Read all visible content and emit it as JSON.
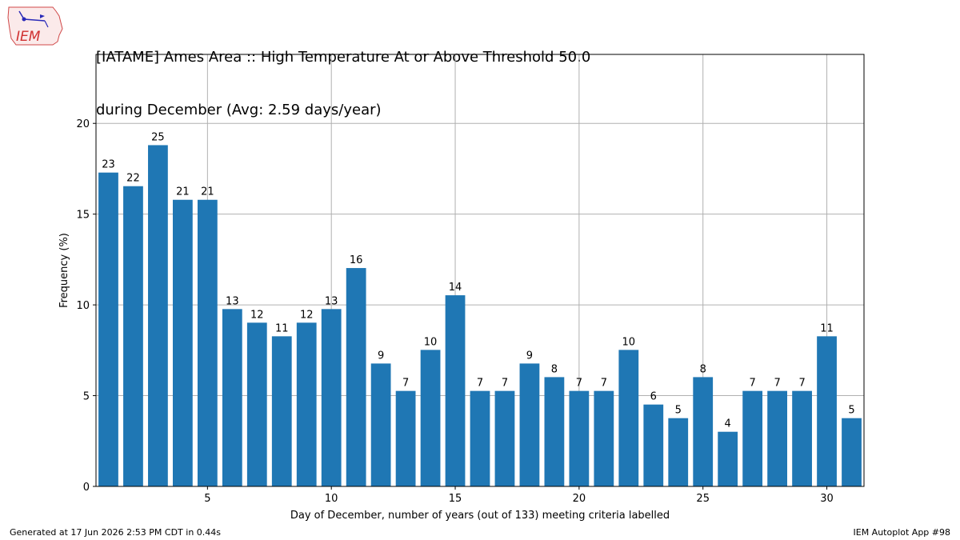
{
  "header": {
    "title_line1": "[IATAME] Ames Area :: High Temperature At or Above Threshold 50.0",
    "title_line2": "during December (Avg: 2.59 days/year)",
    "logo_text": "IEM"
  },
  "footer": {
    "generated": "Generated at 17 Jun 2026 2:53 PM CDT in 0.44s",
    "app": "IEM Autoplot App #98"
  },
  "colors": {
    "bar": "#1f77b4",
    "grid": "#b0b0b0"
  },
  "chart_data": {
    "type": "bar",
    "xlabel": "Day of December, number of years (out of 133) meeting criteria labelled",
    "ylabel": "Frequency (%)",
    "xlim": [
      0.5,
      31.5
    ],
    "ylim": [
      0,
      23.8
    ],
    "xticks": [
      5,
      10,
      15,
      20,
      25,
      30
    ],
    "yticks": [
      0,
      5,
      10,
      15,
      20
    ],
    "grid": true,
    "categories": [
      1,
      2,
      3,
      4,
      5,
      6,
      7,
      8,
      9,
      10,
      11,
      12,
      13,
      14,
      15,
      16,
      17,
      18,
      19,
      20,
      21,
      22,
      23,
      24,
      25,
      26,
      27,
      28,
      29,
      30,
      31
    ],
    "values": [
      17.29,
      16.54,
      18.8,
      15.79,
      15.79,
      9.77,
      9.02,
      8.27,
      9.02,
      9.77,
      12.03,
      6.77,
      5.26,
      7.52,
      10.53,
      5.26,
      5.26,
      6.77,
      6.02,
      5.26,
      5.26,
      7.52,
      4.51,
      3.76,
      6.02,
      3.01,
      5.26,
      5.26,
      5.26,
      8.27,
      3.76
    ],
    "data_labels": [
      23,
      22,
      25,
      21,
      21,
      13,
      12,
      11,
      12,
      13,
      16,
      9,
      7,
      10,
      14,
      7,
      7,
      9,
      8,
      7,
      7,
      10,
      6,
      5,
      8,
      4,
      7,
      7,
      7,
      11,
      5
    ]
  }
}
